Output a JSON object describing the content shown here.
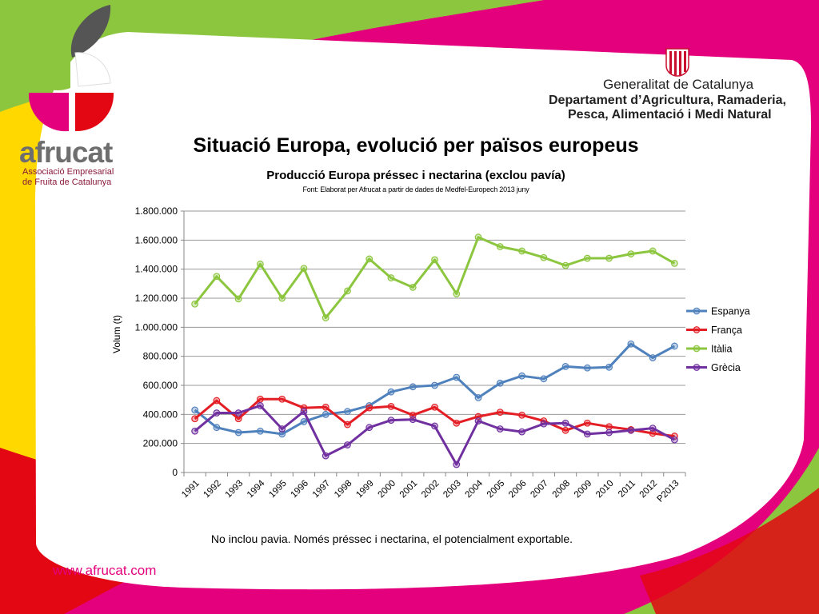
{
  "slide": {
    "title": "Situació Europa, evolució per països europeus",
    "note": "No inclou pavia. Només préssec i nectarina, el potencialment exportable.",
    "url": "www.afrucat.com"
  },
  "logo": {
    "name": "afrucat",
    "subtitle_line1": "Associació Empresarial",
    "subtitle_line2": "de Fruita de Catalunya",
    "colors": [
      "#555555",
      "#8cc63f",
      "#ffffff",
      "#e4007c",
      "#e30613"
    ]
  },
  "government": {
    "line1": "Generalitat de Catalunya",
    "line2": "Departament d’Agricultura, Ramaderia,",
    "line3": "Pesca, Alimentació i Medi Natural",
    "emblem": "senyera-emblem",
    "emblem_colors": [
      "#c8102e",
      "#ffffff"
    ]
  },
  "background_colors": {
    "green": "#8cc63f",
    "magenta": "#e4007c",
    "yellow": "#ffd800",
    "red": "#e30613",
    "panel": "#ffffff"
  },
  "chart_data": {
    "type": "line",
    "title": "Producció  Europa préssec i nectarina (exclou pavía)",
    "subtitle": "Font: Elaborat per Afrucat a partir de dades de Medfel-Europech 2013 juny",
    "xlabel": "",
    "ylabel": "Volum (t)",
    "ylim": [
      0,
      1800000
    ],
    "yticks": [
      0,
      200000,
      400000,
      600000,
      800000,
      1000000,
      1200000,
      1400000,
      1600000,
      1800000
    ],
    "ytick_labels": [
      "0",
      "200.000",
      "400.000",
      "600.000",
      "800.000",
      "1.000.000",
      "1.200.000",
      "1.400.000",
      "1.600.000",
      "1.800.000"
    ],
    "grid": true,
    "legend_position": "right",
    "categories": [
      "1991",
      "1992",
      "1993",
      "1994",
      "1995",
      "1996",
      "1997",
      "1998",
      "1999",
      "2000",
      "2001",
      "2002",
      "2003",
      "2004",
      "2005",
      "2006",
      "2007",
      "2008",
      "2009",
      "2010",
      "2011",
      "2012",
      "P2013"
    ],
    "series": [
      {
        "name": "Espanya",
        "color": "#4f81bd",
        "values": [
          430000,
          310000,
          275000,
          285000,
          265000,
          350000,
          400000,
          420000,
          460000,
          555000,
          590000,
          600000,
          655000,
          515000,
          615000,
          665000,
          645000,
          730000,
          720000,
          725000,
          885000,
          790000,
          870000
        ]
      },
      {
        "name": "França",
        "color": "#e31e24",
        "values": [
          370000,
          495000,
          370000,
          505000,
          505000,
          445000,
          450000,
          330000,
          445000,
          455000,
          395000,
          450000,
          340000,
          385000,
          415000,
          395000,
          355000,
          290000,
          340000,
          315000,
          295000,
          270000,
          250000
        ]
      },
      {
        "name": "Itàlia",
        "color": "#8cc63f",
        "values": [
          1160000,
          1350000,
          1195000,
          1435000,
          1200000,
          1405000,
          1065000,
          1250000,
          1470000,
          1340000,
          1275000,
          1465000,
          1230000,
          1620000,
          1555000,
          1525000,
          1480000,
          1425000,
          1475000,
          1475000,
          1505000,
          1525000,
          1440000
        ]
      },
      {
        "name": "Grècia",
        "color": "#7030a0",
        "values": [
          285000,
          410000,
          410000,
          460000,
          300000,
          420000,
          115000,
          190000,
          310000,
          360000,
          365000,
          320000,
          55000,
          355000,
          300000,
          280000,
          335000,
          340000,
          265000,
          275000,
          290000,
          305000,
          225000
        ]
      }
    ]
  }
}
